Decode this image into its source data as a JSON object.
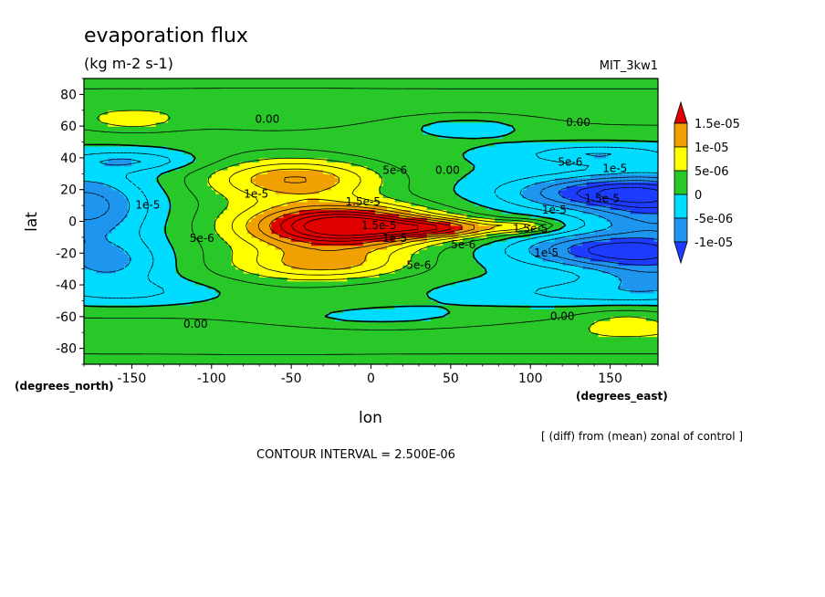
{
  "chart_data": {
    "type": "heatmap",
    "title": "evaporation flux",
    "subtitle": "(kg m-2 s-1)",
    "model": "MIT_3kw1",
    "xlabel": "lon",
    "ylabel": "lat",
    "x_units": "(degrees_east)",
    "y_units": "(degrees_north)",
    "xlim": [
      -180,
      180
    ],
    "ylim": [
      -90,
      90
    ],
    "x_ticks": [
      -150,
      -100,
      -50,
      0,
      50,
      100,
      150
    ],
    "y_ticks": [
      80,
      60,
      40,
      20,
      0,
      -20,
      -40,
      -60,
      -80
    ],
    "contour_interval": "CONTOUR INTERVAL = 2.500E-06",
    "note": "[ (diff) from (mean) zonal of control ]",
    "colorbar": {
      "labels": [
        "1.5e-05",
        "1e-05",
        "5e-06",
        "0",
        "-5e-06",
        "-1e-05"
      ],
      "levels": [
        -1e-05,
        -5e-06,
        0,
        5e-06,
        1e-05,
        1.5e-05
      ],
      "colors": [
        "#1e3cff",
        "#1e96f0",
        "#00dcff",
        "#28c828",
        "#ffff00",
        "#f0a000",
        "#e00000"
      ]
    },
    "contour_labels": [
      {
        "text": "0.00",
        "lon": -65,
        "lat": 62
      },
      {
        "text": "0.00",
        "lon": 130,
        "lat": 60
      },
      {
        "text": "0.00",
        "lon": 48,
        "lat": 30
      },
      {
        "text": "5e-6",
        "lon": 15,
        "lat": 30
      },
      {
        "text": "5e-6",
        "lon": 125,
        "lat": 35
      },
      {
        "text": "1e-5",
        "lon": 153,
        "lat": 31
      },
      {
        "text": "1e-5",
        "lon": -72,
        "lat": 15
      },
      {
        "text": "1e-5",
        "lon": -140,
        "lat": 8
      },
      {
        "text": "1.5e-5",
        "lon": -5,
        "lat": 10
      },
      {
        "text": "1.5e-5",
        "lon": 145,
        "lat": 12
      },
      {
        "text": "1e-5",
        "lon": 115,
        "lat": 5
      },
      {
        "text": "1.5e-5",
        "lon": 5,
        "lat": -5
      },
      {
        "text": "1e-5",
        "lon": 15,
        "lat": -13
      },
      {
        "text": "5e-6",
        "lon": 58,
        "lat": -17
      },
      {
        "text": "1.5e-5",
        "lon": 100,
        "lat": -7
      },
      {
        "text": "1e-5",
        "lon": 110,
        "lat": -22
      },
      {
        "text": "5e-6",
        "lon": -106,
        "lat": -13
      },
      {
        "text": "5e-6",
        "lon": 30,
        "lat": -30
      },
      {
        "text": "0.00",
        "lon": -110,
        "lat": -67
      },
      {
        "text": "0.00",
        "lon": 120,
        "lat": -62
      }
    ]
  }
}
